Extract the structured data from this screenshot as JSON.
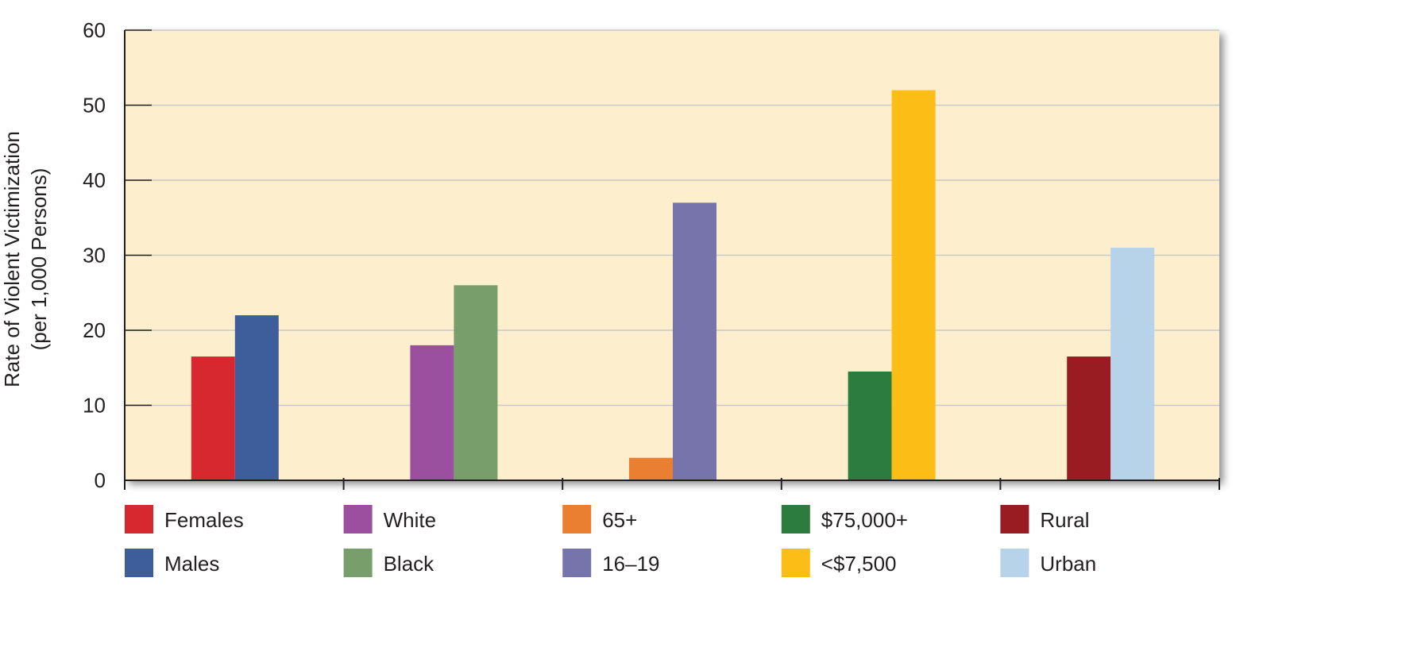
{
  "chart_data": {
    "type": "bar",
    "ylabel": [
      "Rate of Violent Victimization",
      "(per 1,000 Persons)"
    ],
    "ylim": [
      0,
      60
    ],
    "yticks": [
      0,
      10,
      20,
      30,
      40,
      50,
      60
    ],
    "grid": true,
    "legend_placement": "bottom",
    "plot_background": "#fdefce",
    "groups": [
      {
        "bars": [
          {
            "name": "Females",
            "value": 16.5,
            "color": "#d7282f"
          },
          {
            "name": "Males",
            "value": 22,
            "color": "#3e5e9b"
          }
        ]
      },
      {
        "bars": [
          {
            "name": "White",
            "value": 18,
            "color": "#9a4f9f"
          },
          {
            "name": "Black",
            "value": 26,
            "color": "#779e6b"
          }
        ]
      },
      {
        "bars": [
          {
            "name": "65+",
            "value": 3,
            "color": "#ea7f32"
          },
          {
            "name": "16–19",
            "value": 37,
            "color": "#7774ab"
          }
        ]
      },
      {
        "bars": [
          {
            "name": "$75,000+",
            "value": 14.5,
            "color": "#2c7c3f"
          },
          {
            "name": "<$7,500",
            "value": 52,
            "color": "#fcbd17"
          }
        ]
      },
      {
        "bars": [
          {
            "name": "Rural",
            "value": 16.5,
            "color": "#9a1c23"
          },
          {
            "name": "Urban",
            "value": 31,
            "color": "#b6d3ea"
          }
        ]
      }
    ]
  }
}
